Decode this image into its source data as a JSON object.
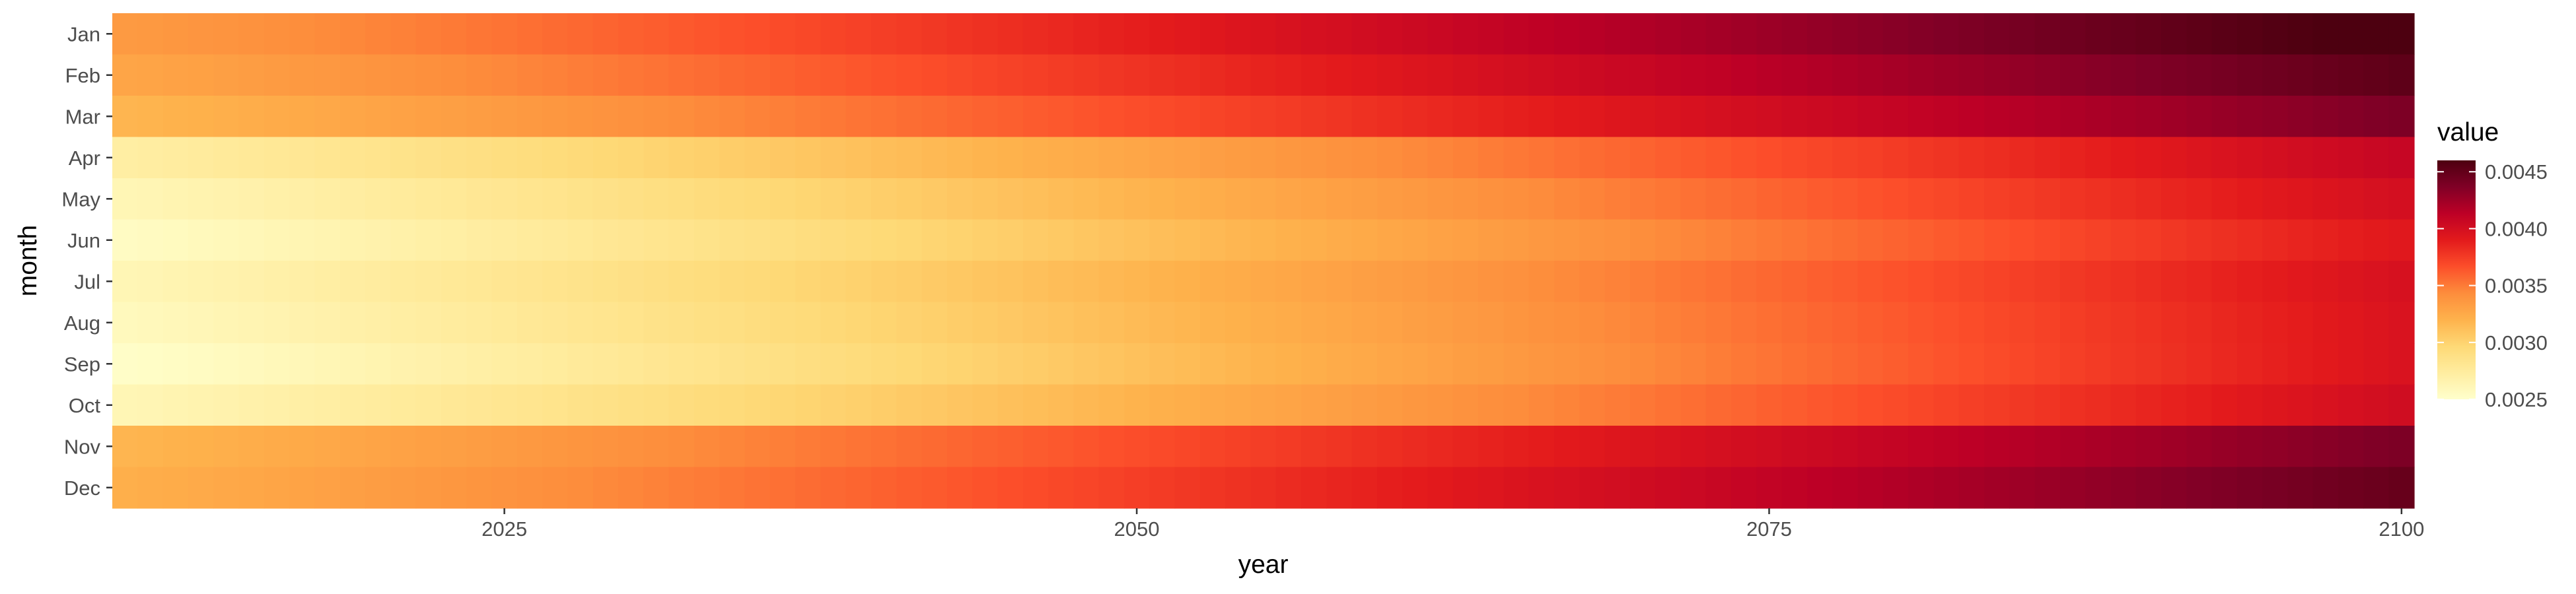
{
  "chart_data": {
    "type": "heatmap",
    "title": "",
    "xlabel": "year",
    "ylabel": "month",
    "x_range": [
      2010,
      2100
    ],
    "x_ticks": [
      2025,
      2050,
      2075,
      2100
    ],
    "months": [
      "Jan",
      "Feb",
      "Mar",
      "Apr",
      "May",
      "Jun",
      "Jul",
      "Aug",
      "Sep",
      "Oct",
      "Nov",
      "Dec"
    ],
    "value_at_2010": [
      0.00335,
      0.00328,
      0.00318,
      0.00272,
      0.00262,
      0.00255,
      0.00262,
      0.00258,
      0.00252,
      0.00262,
      0.00318,
      0.00322
    ],
    "value_at_2100": [
      0.00465,
      0.00452,
      0.00438,
      0.00408,
      0.004,
      0.00392,
      0.00398,
      0.00396,
      0.00396,
      0.00402,
      0.00438,
      0.00448
    ],
    "legend": {
      "title": "value",
      "position": "right",
      "range": [
        0.0025,
        0.0046
      ],
      "ticks": [
        0.0025,
        0.003,
        0.0035,
        0.004,
        0.0045
      ],
      "tick_labels": [
        "0.0025",
        "0.0030",
        "0.0035",
        "0.0040",
        "0.0045"
      ]
    },
    "colors": [
      "#ffffcc",
      "#ffeda0",
      "#fed976",
      "#feb24c",
      "#fd8d3c",
      "#fc4e2a",
      "#e31a1c",
      "#bd0026",
      "#800026",
      "#4d0010"
    ],
    "panel_background": "#ebebeb",
    "grid": false
  }
}
